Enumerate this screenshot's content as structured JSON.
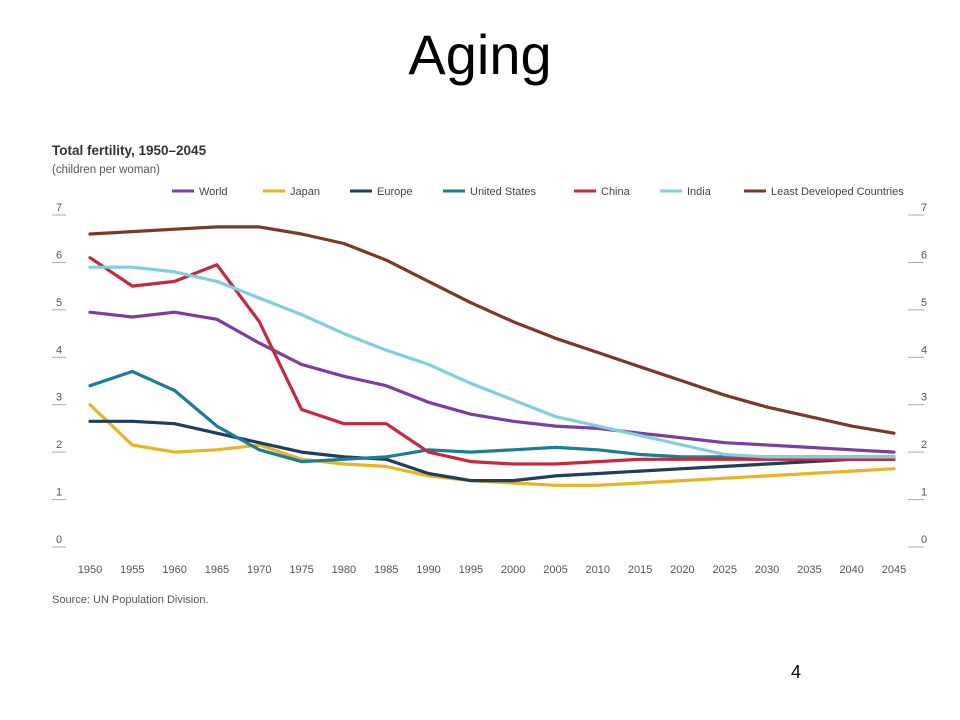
{
  "slide": {
    "title": "Aging",
    "page_number": "4"
  },
  "chart_data": {
    "type": "line",
    "title": "Total fertility, 1950–2045",
    "subtitle": "(children per woman)",
    "source": "Source: UN Population Division.",
    "x": [
      1950,
      1955,
      1960,
      1965,
      1970,
      1975,
      1980,
      1985,
      1990,
      1995,
      2000,
      2005,
      2010,
      2015,
      2020,
      2025,
      2030,
      2035,
      2040,
      2045
    ],
    "xlim": [
      1950,
      2045
    ],
    "ylim": [
      0,
      7
    ],
    "yticks": [
      0,
      1,
      2,
      3,
      4,
      5,
      6,
      7
    ],
    "grid": false,
    "legend_position": "top",
    "series": [
      {
        "name": "World",
        "color": "#7b3fa0",
        "values": [
          4.95,
          4.85,
          4.95,
          4.8,
          4.3,
          3.85,
          3.6,
          3.4,
          3.05,
          2.8,
          2.65,
          2.55,
          2.5,
          2.4,
          2.3,
          2.2,
          2.15,
          2.1,
          2.05,
          2.0
        ]
      },
      {
        "name": "Japan",
        "color": "#e8b422",
        "values": [
          3.0,
          2.15,
          2.0,
          2.05,
          2.15,
          1.85,
          1.75,
          1.7,
          1.5,
          1.4,
          1.35,
          1.3,
          1.3,
          1.35,
          1.4,
          1.45,
          1.5,
          1.55,
          1.6,
          1.65
        ]
      },
      {
        "name": "Europe",
        "color": "#1f3e5a",
        "values": [
          2.65,
          2.65,
          2.6,
          2.4,
          2.2,
          2.0,
          1.9,
          1.85,
          1.55,
          1.4,
          1.4,
          1.5,
          1.55,
          1.6,
          1.65,
          1.7,
          1.75,
          1.8,
          1.85,
          1.85
        ]
      },
      {
        "name": "United States",
        "color": "#1a7e96",
        "values": [
          3.4,
          3.7,
          3.3,
          2.55,
          2.05,
          1.8,
          1.85,
          1.9,
          2.05,
          2.0,
          2.05,
          2.1,
          2.05,
          1.95,
          1.9,
          1.9,
          1.9,
          1.9,
          1.9,
          1.9
        ]
      },
      {
        "name": "China",
        "color": "#c8283c",
        "values": [
          6.1,
          5.5,
          5.6,
          5.95,
          4.75,
          2.9,
          2.6,
          2.6,
          2.0,
          1.8,
          1.75,
          1.75,
          1.8,
          1.85,
          1.85,
          1.85,
          1.85,
          1.85,
          1.85,
          1.85
        ]
      },
      {
        "name": "India",
        "color": "#7fcfdc",
        "values": [
          5.9,
          5.9,
          5.8,
          5.6,
          5.25,
          4.9,
          4.5,
          4.15,
          3.85,
          3.45,
          3.1,
          2.75,
          2.55,
          2.35,
          2.15,
          1.95,
          1.9,
          1.9,
          1.9,
          1.9
        ]
      },
      {
        "name": "Least Developed Countries",
        "color": "#7a3a2a",
        "values": [
          6.6,
          6.65,
          6.7,
          6.75,
          6.75,
          6.6,
          6.4,
          6.05,
          5.6,
          5.15,
          4.75,
          4.4,
          4.1,
          3.8,
          3.5,
          3.2,
          2.95,
          2.75,
          2.55,
          2.4
        ]
      }
    ]
  }
}
